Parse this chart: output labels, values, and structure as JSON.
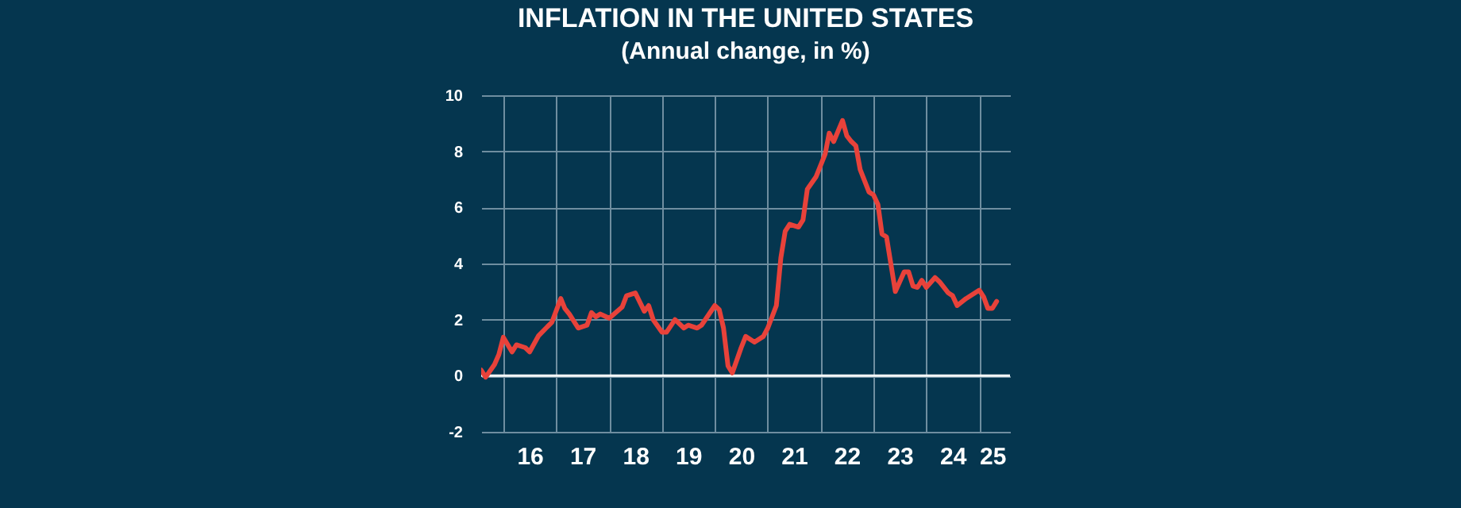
{
  "chart_data": {
    "type": "line",
    "title": "INFLATION IN THE UNITED STATES",
    "subtitle": "(Annual change, in %)",
    "x": [
      "2015-08",
      "2015-09",
      "2015-11",
      "2015-12",
      "2016-01",
      "2016-03",
      "2016-04",
      "2016-06",
      "2016-07",
      "2016-09",
      "2016-11",
      "2016-12",
      "2017-02",
      "2017-03",
      "2017-04",
      "2017-06",
      "2017-08",
      "2017-09",
      "2017-10",
      "2017-11",
      "2018-01",
      "2018-04",
      "2018-05",
      "2018-07",
      "2018-09",
      "2018-10",
      "2018-11",
      "2019-01",
      "2019-02",
      "2019-04",
      "2019-06",
      "2019-07",
      "2019-09",
      "2019-10",
      "2020-01",
      "2020-02",
      "2020-03",
      "2020-04",
      "2020-05",
      "2020-07",
      "2020-08",
      "2020-10",
      "2020-12",
      "2021-01",
      "2021-03",
      "2021-04",
      "2021-05",
      "2021-06",
      "2021-08",
      "2021-09",
      "2021-10",
      "2021-12",
      "2022-02",
      "2022-03",
      "2022-04",
      "2022-06",
      "2022-07",
      "2022-08",
      "2022-09",
      "2022-10",
      "2022-12",
      "2023-01",
      "2023-02",
      "2023-03",
      "2023-04",
      "2023-06",
      "2023-08",
      "2023-09",
      "2023-10",
      "2023-11",
      "2023-12",
      "2024-01",
      "2024-03",
      "2024-04",
      "2024-06",
      "2024-07",
      "2024-08",
      "2024-10",
      "2025-01",
      "2025-02",
      "2025-03",
      "2025-04",
      "2025-05"
    ],
    "series": [
      {
        "color": "#e8423a",
        "values": [
          0.2,
          -0.05,
          0.4,
          0.75,
          1.37,
          0.85,
          1.1,
          1.0,
          0.85,
          1.43,
          1.75,
          1.9,
          2.75,
          2.4,
          2.2,
          1.7,
          1.8,
          2.25,
          2.1,
          2.2,
          2.05,
          2.45,
          2.85,
          2.95,
          2.3,
          2.5,
          2.0,
          1.55,
          1.55,
          2.0,
          1.7,
          1.8,
          1.7,
          1.8,
          2.5,
          2.35,
          1.7,
          0.35,
          0.1,
          1.0,
          1.4,
          1.2,
          1.4,
          1.7,
          2.5,
          4.2,
          5.15,
          5.4,
          5.3,
          5.55,
          6.65,
          7.1,
          7.9,
          8.65,
          8.35,
          9.1,
          8.55,
          8.35,
          8.2,
          7.35,
          6.55,
          6.45,
          6.1,
          5.05,
          4.95,
          3.0,
          3.7,
          3.7,
          3.2,
          3.15,
          3.4,
          3.15,
          3.5,
          3.35,
          2.95,
          2.85,
          2.5,
          2.75,
          3.05,
          2.8,
          2.4,
          2.4,
          2.65
        ]
      }
    ],
    "xlim": [
      "2015-08",
      "2025-08"
    ],
    "xticks": [
      {
        "value": "2016-01",
        "label": null
      },
      {
        "value": "2016-07",
        "label": "16"
      },
      {
        "value": "2017-01",
        "label": null
      },
      {
        "value": "2017-07",
        "label": "17"
      },
      {
        "value": "2018-01",
        "label": null
      },
      {
        "value": "2018-07",
        "label": "18"
      },
      {
        "value": "2019-01",
        "label": null
      },
      {
        "value": "2019-07",
        "label": "19"
      },
      {
        "value": "2020-01",
        "label": null
      },
      {
        "value": "2020-07",
        "label": "20"
      },
      {
        "value": "2021-01",
        "label": null
      },
      {
        "value": "2021-07",
        "label": "21"
      },
      {
        "value": "2022-01",
        "label": null
      },
      {
        "value": "2022-07",
        "label": "22"
      },
      {
        "value": "2023-01",
        "label": null
      },
      {
        "value": "2023-07",
        "label": "23"
      },
      {
        "value": "2024-01",
        "label": null
      },
      {
        "value": "2024-07",
        "label": "24"
      },
      {
        "value": "2025-01",
        "label": null
      },
      {
        "value": "2025-04",
        "label": "25"
      }
    ],
    "ylim": [
      -2,
      10
    ],
    "yticks": [
      -2,
      0,
      2,
      4,
      6,
      8,
      10
    ],
    "ref_lines": [
      {
        "axis": "y",
        "value": 0,
        "color": "#ffffff"
      }
    ],
    "grid": true,
    "marker": "none",
    "line_style": "solid"
  }
}
